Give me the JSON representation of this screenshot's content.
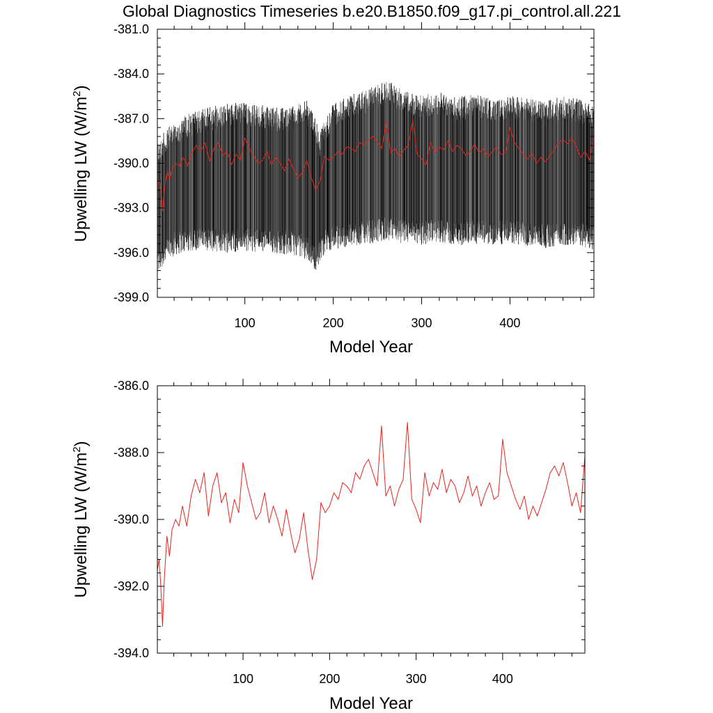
{
  "figure_title": "Global Diagnostics Timeseries b.e20.B1850.f09_g17.pi_control.all.221",
  "colors": {
    "monthly": "#000000",
    "annual": "#e8231b",
    "axis": "#000000",
    "background": "#ffffff"
  },
  "chart_data": [
    {
      "type": "line",
      "title": "Global Diagnostics Timeseries b.e20.B1850.f09_g17.pi_control.all.221",
      "xlabel": "Model Year",
      "ylabel": "Upwelling LW (W/m²)",
      "ylabel_main": "Upwelling LW (W/m",
      "ylabel_sup": "2",
      "ylabel_end": ")",
      "xlim": [
        1,
        495
      ],
      "ylim": [
        -399.0,
        -381.0
      ],
      "xticks": [
        100,
        200,
        300,
        400
      ],
      "xtick_labels": [
        "100",
        "200",
        "300",
        "400"
      ],
      "yticks": [
        -381.0,
        -384.0,
        -387.0,
        -390.0,
        -393.0,
        -396.0,
        -399.0
      ],
      "ytick_labels": [
        "-381.0",
        "-384.0",
        "-387.0",
        "-390.0",
        "-393.0",
        "-396.0",
        "-399.0"
      ],
      "grid": false,
      "legend": "none",
      "monthly_envelope": {
        "x": [
          1,
          10,
          20,
          30,
          40,
          50,
          60,
          80,
          100,
          120,
          140,
          160,
          170,
          180,
          185,
          190,
          200,
          220,
          240,
          260,
          280,
          300,
          320,
          340,
          360,
          380,
          400,
          420,
          440,
          460,
          480,
          495
        ],
        "max": [
          -388.5,
          -387.8,
          -387.2,
          -386.8,
          -386.6,
          -386.4,
          -386.2,
          -386.0,
          -385.9,
          -386.1,
          -386.3,
          -386.0,
          -385.8,
          -386.8,
          -388.0,
          -387.0,
          -386.0,
          -385.4,
          -385.0,
          -384.4,
          -385.0,
          -385.4,
          -385.2,
          -385.6,
          -385.3,
          -385.7,
          -385.4,
          -385.6,
          -385.8,
          -385.5,
          -385.7,
          -386.2
        ],
        "min": [
          -397.5,
          -396.8,
          -396.2,
          -396.0,
          -395.9,
          -395.8,
          -395.9,
          -396.0,
          -395.9,
          -396.0,
          -396.1,
          -396.2,
          -396.5,
          -397.2,
          -396.8,
          -396.0,
          -395.8,
          -395.6,
          -395.4,
          -395.2,
          -395.4,
          -395.5,
          -395.3,
          -395.6,
          -395.4,
          -395.5,
          -395.4,
          -395.6,
          -395.7,
          -395.5,
          -395.6,
          -395.8
        ]
      },
      "series": [
        {
          "x": [
            1,
            3,
            5,
            7,
            9,
            12,
            15,
            18,
            22,
            26,
            30,
            35,
            40,
            45,
            50,
            55,
            60,
            65,
            70,
            75,
            80,
            85,
            90,
            95,
            100,
            105,
            110,
            115,
            120,
            125,
            130,
            135,
            140,
            145,
            150,
            155,
            160,
            165,
            170,
            175,
            180,
            185,
            190,
            195,
            200,
            205,
            210,
            215,
            220,
            225,
            230,
            235,
            240,
            245,
            250,
            255,
            260,
            265,
            270,
            275,
            280,
            285,
            290,
            295,
            300,
            305,
            310,
            315,
            320,
            325,
            330,
            335,
            340,
            345,
            350,
            355,
            360,
            365,
            370,
            375,
            380,
            385,
            390,
            395,
            400,
            405,
            410,
            415,
            420,
            425,
            430,
            435,
            440,
            445,
            450,
            455,
            460,
            465,
            470,
            475,
            480,
            485,
            490,
            495
          ],
          "values": [
            -391.5,
            -391.2,
            -392.0,
            -393.2,
            -391.8,
            -390.5,
            -391.1,
            -390.3,
            -390.0,
            -390.2,
            -389.6,
            -390.2,
            -389.3,
            -388.8,
            -389.2,
            -388.6,
            -389.9,
            -389.0,
            -388.6,
            -389.5,
            -389.2,
            -390.1,
            -389.4,
            -389.8,
            -388.3,
            -389.0,
            -389.5,
            -390.0,
            -389.8,
            -389.2,
            -390.1,
            -389.6,
            -390.0,
            -390.5,
            -389.7,
            -390.4,
            -391.0,
            -390.6,
            -389.8,
            -390.9,
            -391.8,
            -391.2,
            -389.5,
            -389.8,
            -389.6,
            -389.2,
            -389.4,
            -388.9,
            -389.0,
            -389.2,
            -388.6,
            -388.8,
            -388.4,
            -388.2,
            -388.6,
            -389.0,
            -387.2,
            -389.3,
            -389.0,
            -389.6,
            -389.1,
            -388.8,
            -387.1,
            -389.4,
            -389.7,
            -390.1,
            -388.6,
            -389.3,
            -388.9,
            -389.1,
            -388.5,
            -389.2,
            -388.8,
            -389.0,
            -389.5,
            -389.2,
            -388.7,
            -389.3,
            -389.0,
            -389.6,
            -389.2,
            -388.9,
            -389.4,
            -389.3,
            -387.6,
            -388.6,
            -389.0,
            -389.4,
            -389.7,
            -389.3,
            -390.0,
            -389.6,
            -389.9,
            -389.5,
            -389.1,
            -388.6,
            -388.4,
            -388.7,
            -388.3,
            -388.9,
            -389.6,
            -389.2,
            -389.8,
            -388.1
          ]
        }
      ]
    },
    {
      "type": "line",
      "title": "",
      "xlabel": "Model Year",
      "ylabel": "Upwelling LW (W/m²)",
      "ylabel_main": "Upwelling LW (W/m",
      "ylabel_sup": "2",
      "ylabel_end": ")",
      "xlim": [
        1,
        495
      ],
      "ylim": [
        -394.0,
        -386.0
      ],
      "xticks": [
        100,
        200,
        300,
        400
      ],
      "xtick_labels": [
        "100",
        "200",
        "300",
        "400"
      ],
      "yticks": [
        -386.0,
        -388.0,
        -390.0,
        -392.0,
        -394.0
      ],
      "ytick_labels": [
        "-386.0",
        "-388.0",
        "-390.0",
        "-392.0",
        "-394.0"
      ],
      "grid": false,
      "legend": "none",
      "series": [
        {
          "x": [
            1,
            3,
            5,
            7,
            9,
            12,
            15,
            18,
            22,
            26,
            30,
            35,
            40,
            45,
            50,
            55,
            60,
            65,
            70,
            75,
            80,
            85,
            90,
            95,
            100,
            105,
            110,
            115,
            120,
            125,
            130,
            135,
            140,
            145,
            150,
            155,
            160,
            165,
            170,
            175,
            180,
            185,
            190,
            195,
            200,
            205,
            210,
            215,
            220,
            225,
            230,
            235,
            240,
            245,
            250,
            255,
            260,
            265,
            270,
            275,
            280,
            285,
            290,
            295,
            300,
            305,
            310,
            315,
            320,
            325,
            330,
            335,
            340,
            345,
            350,
            355,
            360,
            365,
            370,
            375,
            380,
            385,
            390,
            395,
            400,
            405,
            410,
            415,
            420,
            425,
            430,
            435,
            440,
            445,
            450,
            455,
            460,
            465,
            470,
            475,
            480,
            485,
            490,
            495
          ],
          "values": [
            -391.5,
            -391.2,
            -392.0,
            -393.2,
            -391.8,
            -390.5,
            -391.1,
            -390.3,
            -390.0,
            -390.2,
            -389.6,
            -390.2,
            -389.3,
            -388.8,
            -389.2,
            -388.6,
            -389.9,
            -389.0,
            -388.6,
            -389.5,
            -389.2,
            -390.1,
            -389.4,
            -389.8,
            -388.3,
            -389.0,
            -389.5,
            -390.0,
            -389.8,
            -389.2,
            -390.1,
            -389.6,
            -390.0,
            -390.5,
            -389.7,
            -390.4,
            -391.0,
            -390.6,
            -389.8,
            -390.9,
            -391.8,
            -391.2,
            -389.5,
            -389.8,
            -389.6,
            -389.2,
            -389.4,
            -388.9,
            -389.0,
            -389.2,
            -388.6,
            -388.8,
            -388.4,
            -388.2,
            -388.6,
            -389.0,
            -387.2,
            -389.3,
            -389.0,
            -389.6,
            -389.1,
            -388.8,
            -387.1,
            -389.4,
            -389.7,
            -390.1,
            -388.6,
            -389.3,
            -388.9,
            -389.1,
            -388.5,
            -389.2,
            -388.8,
            -389.0,
            -389.5,
            -389.2,
            -388.7,
            -389.3,
            -389.0,
            -389.6,
            -389.2,
            -388.9,
            -389.4,
            -389.3,
            -387.6,
            -388.6,
            -389.0,
            -389.4,
            -389.7,
            -389.3,
            -390.0,
            -389.6,
            -389.9,
            -389.5,
            -389.1,
            -388.6,
            -388.4,
            -388.7,
            -388.3,
            -388.9,
            -389.6,
            -389.2,
            -389.8,
            -388.1
          ]
        }
      ]
    }
  ]
}
